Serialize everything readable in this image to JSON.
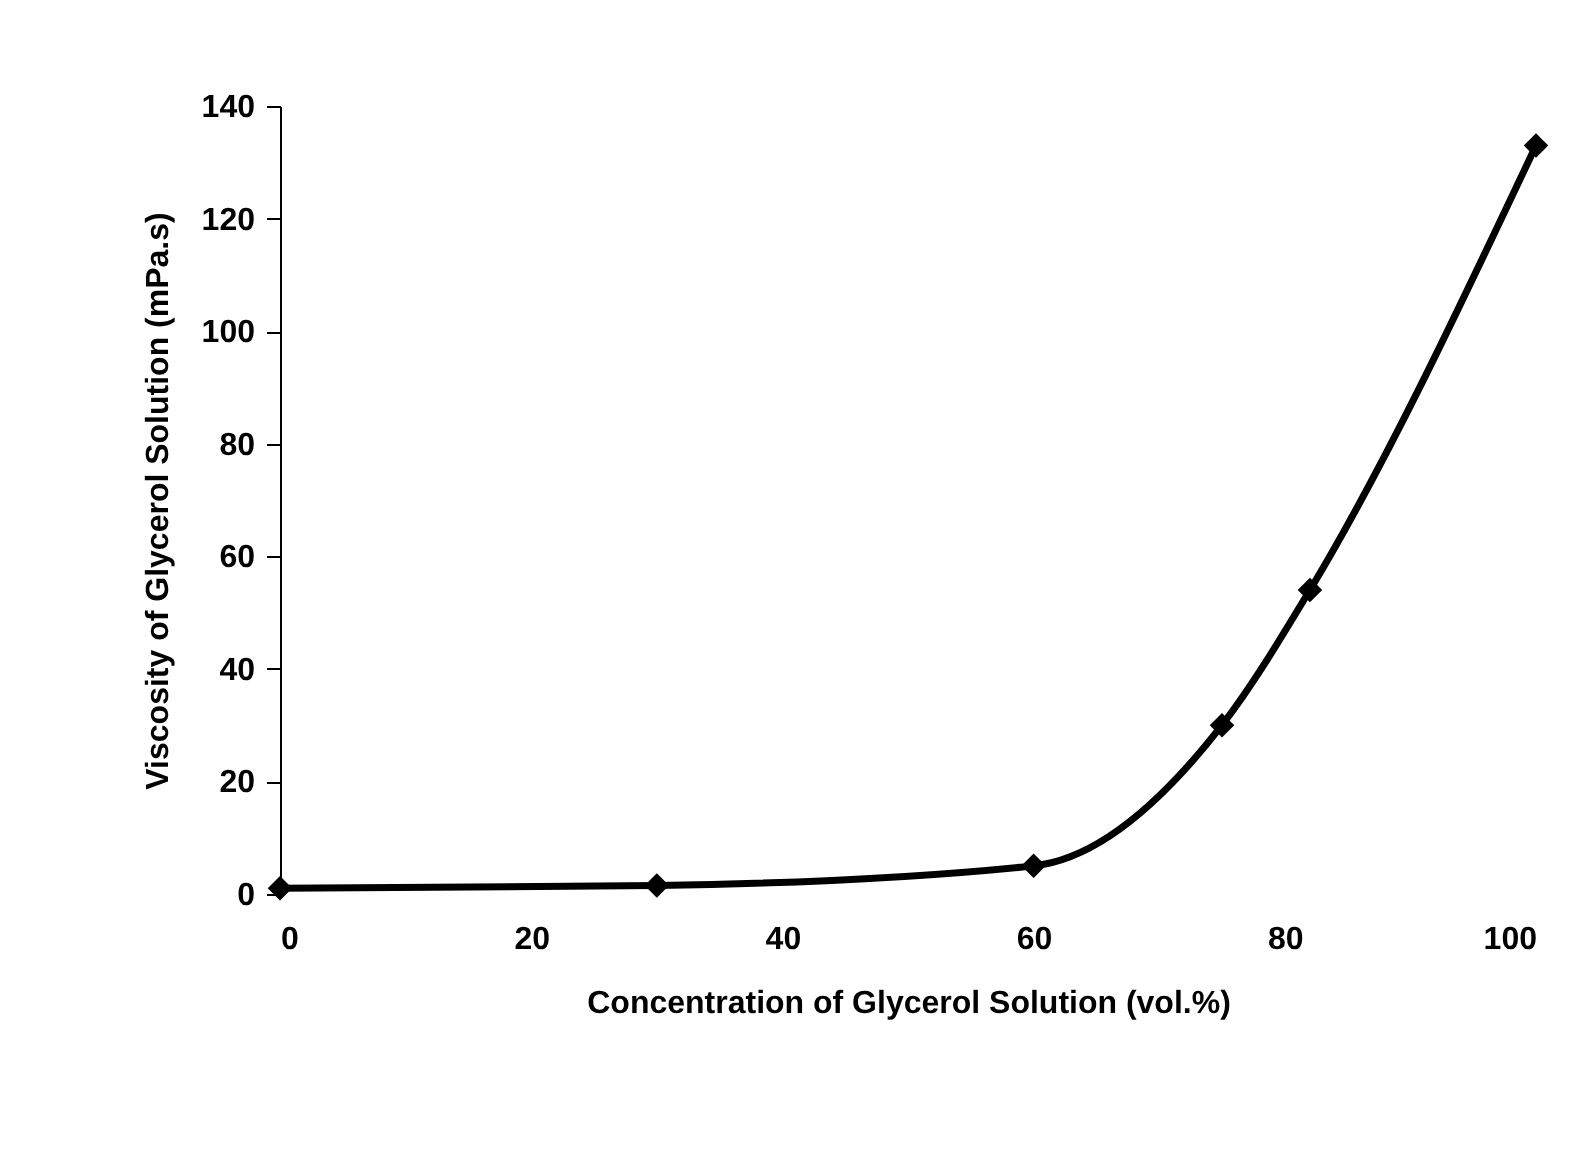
{
  "chart_data": {
    "type": "line",
    "xlabel": "Concentration of Glycerol Solution (vol.%)",
    "ylabel": "Viscosity of Glycerol Solution (mPa.s)",
    "x": [
      0,
      30,
      60,
      75,
      82,
      100
    ],
    "series": [
      {
        "color": "#000000",
        "values": [
          1,
          1.5,
          5,
          30,
          54,
          133
        ]
      }
    ],
    "xlim": [
      0,
      100
    ],
    "xticks": [
      0,
      20,
      40,
      60,
      80,
      100
    ],
    "ylim": [
      0,
      140
    ],
    "yticks": [
      0,
      20,
      40,
      60,
      80,
      100,
      120,
      140
    ],
    "grid": false,
    "legend": false,
    "marker": "diamond",
    "line_style": "solid"
  }
}
